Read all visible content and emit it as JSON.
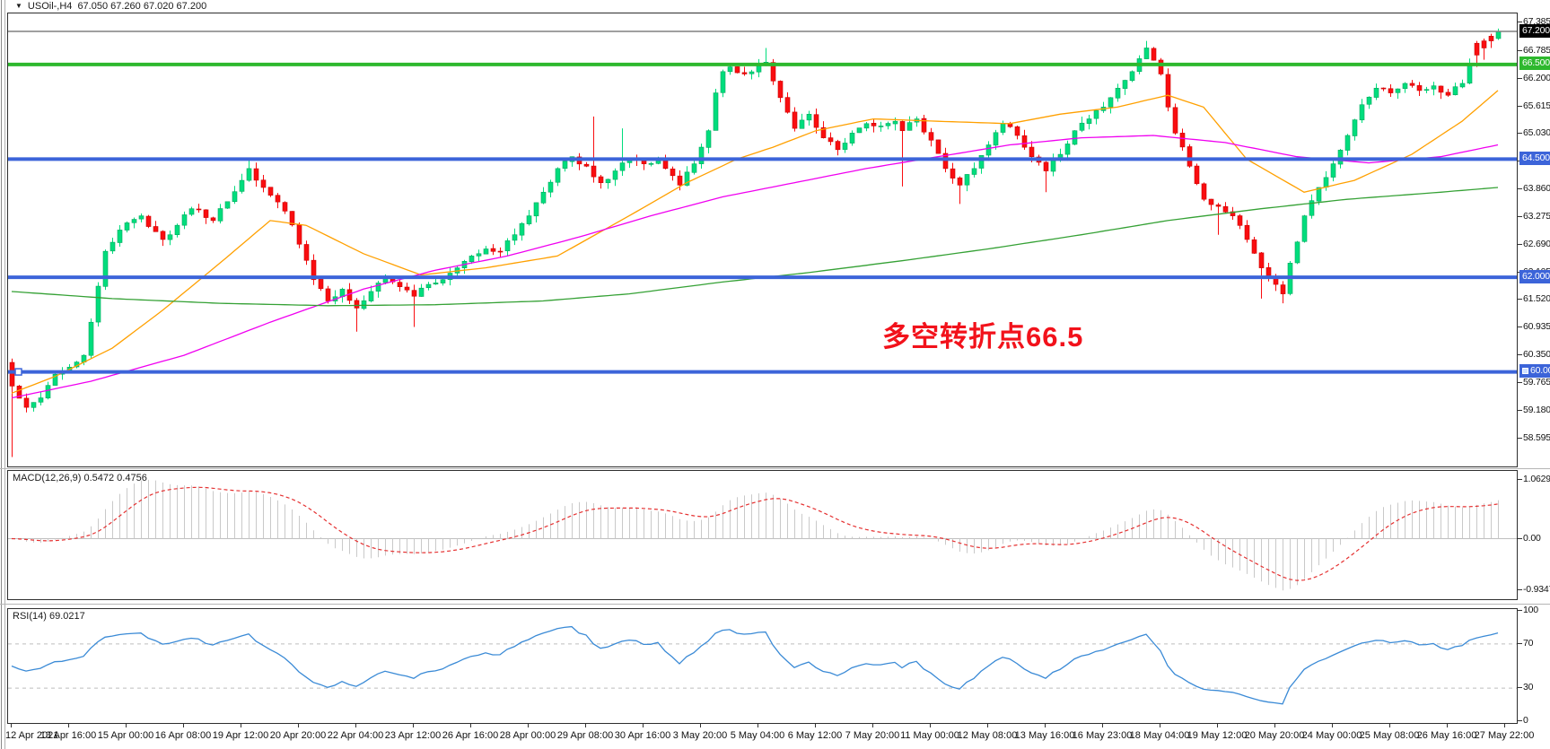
{
  "window": {
    "symbol_title": "USOil-,H4",
    "ohlc_title": "67.050 67.260 67.020 67.200",
    "dropdown_icon": "symbol-dropdown-icon"
  },
  "annotation": {
    "text": "多空转折点66.5",
    "color": "#f2121b"
  },
  "chart_data": {
    "type": "candlestick",
    "symbol": "USOil-",
    "timeframe": "H4",
    "title": "USOil-,H4 67.050 67.260 67.020 67.200",
    "last_ohlc": {
      "open": 67.05,
      "high": 67.26,
      "low": 67.02,
      "close": 67.2
    },
    "price_axis": {
      "min": 58.0,
      "max": 67.58,
      "ticks": [
        {
          "label": "67.385",
          "value": 67.385
        },
        {
          "label": "66.785",
          "value": 66.785
        },
        {
          "label": "66.200",
          "value": 66.2
        },
        {
          "label": "65.615",
          "value": 65.615
        },
        {
          "label": "65.030",
          "value": 65.03
        },
        {
          "label": "64.445",
          "value": 64.445
        },
        {
          "label": "63.860",
          "value": 63.86
        },
        {
          "label": "63.275",
          "value": 63.275
        },
        {
          "label": "62.690",
          "value": 62.69
        },
        {
          "label": "62.105",
          "value": 62.105
        },
        {
          "label": "61.520",
          "value": 61.52
        },
        {
          "label": "60.935",
          "value": 60.935
        },
        {
          "label": "60.350",
          "value": 60.35
        },
        {
          "label": "59.765",
          "value": 59.765
        },
        {
          "label": "59.180",
          "value": 59.18
        },
        {
          "label": "58.595",
          "value": 58.595
        }
      ]
    },
    "time_labels": [
      "12 Apr 2021",
      "13 Apr 16:00",
      "15 Apr 00:00",
      "16 Apr 08:00",
      "19 Apr 12:00",
      "20 Apr 20:00",
      "22 Apr 04:00",
      "23 Apr 12:00",
      "26 Apr 16:00",
      "28 Apr 00:00",
      "29 Apr 08:00",
      "30 Apr 16:00",
      "3 May 20:00",
      "5 May 04:00",
      "6 May 12:00",
      "7 May 20:00",
      "11 May 00:00",
      "12 May 08:00",
      "13 May 16:00",
      "16 May 23:00",
      "18 May 04:00",
      "19 May 12:00",
      "20 May 20:00",
      "24 May 00:00",
      "25 May 08:00",
      "26 May 16:00",
      "27 May 22:00"
    ],
    "horizontal_lines": [
      {
        "value": 66.5,
        "label": "66.500",
        "color": "#2eb82e",
        "width": 4
      },
      {
        "value": 64.5,
        "label": "64.500",
        "color": "#3c64d9",
        "width": 4
      },
      {
        "value": 62.0,
        "label": "62.000",
        "color": "#3c64d9",
        "width": 4
      },
      {
        "value": 60.0,
        "label": "60.000",
        "color": "#3c64d9",
        "width": 4,
        "handle": true
      }
    ],
    "current_price": {
      "value": 67.2,
      "label": "67.200",
      "line_color": "#808080",
      "badge_bg": "#000000"
    },
    "candles": {
      "count": 208,
      "up_color": "#00dd7d",
      "up_stroke": "#00a85c",
      "down_color": "#f90d10",
      "down_stroke": "#cc0000",
      "close_anchors": [
        [
          0,
          59.7
        ],
        [
          2,
          59.25
        ],
        [
          4,
          59.45
        ],
        [
          6,
          59.95
        ],
        [
          8,
          60.1
        ],
        [
          10,
          60.35
        ],
        [
          11,
          61.05
        ],
        [
          13,
          62.55
        ],
        [
          15,
          63.0
        ],
        [
          18,
          63.3
        ],
        [
          21,
          62.8
        ],
        [
          23,
          63.1
        ],
        [
          25,
          63.45
        ],
        [
          28,
          63.2
        ],
        [
          30,
          63.6
        ],
        [
          32,
          64.05
        ],
        [
          33,
          64.3
        ],
        [
          35,
          63.9
        ],
        [
          38,
          63.4
        ],
        [
          40,
          62.7
        ],
        [
          42,
          61.95
        ],
        [
          44,
          61.5
        ],
        [
          46,
          61.75
        ],
        [
          48,
          61.35
        ],
        [
          50,
          61.7
        ],
        [
          52,
          62.0
        ],
        [
          54,
          61.8
        ],
        [
          56,
          61.6
        ],
        [
          58,
          61.85
        ],
        [
          60,
          61.95
        ],
        [
          62,
          62.2
        ],
        [
          64,
          62.45
        ],
        [
          66,
          62.6
        ],
        [
          68,
          62.55
        ],
        [
          70,
          62.9
        ],
        [
          72,
          63.3
        ],
        [
          74,
          63.8
        ],
        [
          76,
          64.3
        ],
        [
          78,
          64.55
        ],
        [
          80,
          64.35
        ],
        [
          82,
          64.0
        ],
        [
          84,
          64.25
        ],
        [
          86,
          64.5
        ],
        [
          88,
          64.4
        ],
        [
          90,
          64.5
        ],
        [
          92,
          64.15
        ],
        [
          93,
          63.95
        ],
        [
          95,
          64.4
        ],
        [
          97,
          65.1
        ],
        [
          98,
          65.9
        ],
        [
          99,
          66.35
        ],
        [
          100,
          66.45
        ],
        [
          102,
          66.3
        ],
        [
          104,
          66.5
        ],
        [
          105,
          66.55
        ],
        [
          107,
          65.8
        ],
        [
          109,
          65.15
        ],
        [
          111,
          65.45
        ],
        [
          113,
          64.95
        ],
        [
          115,
          64.7
        ],
        [
          117,
          65.05
        ],
        [
          119,
          65.25
        ],
        [
          121,
          65.2
        ],
        [
          123,
          65.3
        ],
        [
          124,
          65.1
        ],
        [
          126,
          65.35
        ],
        [
          128,
          64.9
        ],
        [
          130,
          64.3
        ],
        [
          132,
          63.95
        ],
        [
          134,
          64.3
        ],
        [
          136,
          64.8
        ],
        [
          138,
          65.25
        ],
        [
          140,
          65.0
        ],
        [
          142,
          64.55
        ],
        [
          144,
          64.25
        ],
        [
          146,
          64.6
        ],
        [
          148,
          65.1
        ],
        [
          150,
          65.35
        ],
        [
          152,
          65.6
        ],
        [
          154,
          66.0
        ],
        [
          156,
          66.35
        ],
        [
          158,
          66.85
        ],
        [
          160,
          66.3
        ],
        [
          161,
          65.6
        ],
        [
          162,
          65.05
        ],
        [
          164,
          64.35
        ],
        [
          166,
          63.65
        ],
        [
          168,
          63.5
        ],
        [
          170,
          63.3
        ],
        [
          172,
          62.8
        ],
        [
          174,
          62.2
        ],
        [
          176,
          61.85
        ],
        [
          177,
          61.65
        ],
        [
          178,
          62.3
        ],
        [
          180,
          63.3
        ],
        [
          182,
          63.9
        ],
        [
          184,
          64.4
        ],
        [
          186,
          65.0
        ],
        [
          188,
          65.65
        ],
        [
          190,
          66.0
        ],
        [
          192,
          65.9
        ],
        [
          194,
          66.1
        ],
        [
          196,
          65.95
        ],
        [
          198,
          66.05
        ],
        [
          200,
          65.85
        ],
        [
          202,
          66.1
        ],
        [
          203,
          66.5
        ],
        [
          204,
          66.7
        ],
        [
          205,
          66.85
        ],
        [
          206,
          67.0
        ],
        [
          207,
          67.2
        ]
      ],
      "wick_overrides": [
        {
          "i": 0,
          "low": 58.2
        },
        {
          "i": 33,
          "high": 64.5
        },
        {
          "i": 48,
          "low": 60.85
        },
        {
          "i": 56,
          "low": 60.95
        },
        {
          "i": 81,
          "high": 65.4
        },
        {
          "i": 85,
          "high": 65.15
        },
        {
          "i": 105,
          "high": 66.85
        },
        {
          "i": 124,
          "low": 63.92
        },
        {
          "i": 132,
          "low": 63.55
        },
        {
          "i": 144,
          "low": 63.8
        },
        {
          "i": 158,
          "high": 67.0
        },
        {
          "i": 168,
          "low": 62.9
        },
        {
          "i": 174,
          "low": 61.55
        },
        {
          "i": 177,
          "low": 61.45
        }
      ],
      "candle_overrides": [
        {
          "i": 204,
          "o": 66.95,
          "h": 67.0,
          "l": 66.45,
          "c": 66.7
        },
        {
          "i": 205,
          "o": 67.0,
          "h": 67.05,
          "l": 66.6,
          "c": 66.85
        },
        {
          "i": 206,
          "o": 67.1,
          "h": 67.15,
          "l": 66.85,
          "c": 67.0
        },
        {
          "i": 207,
          "o": 67.05,
          "h": 67.26,
          "l": 67.02,
          "c": 67.2
        }
      ]
    },
    "moving_averages": [
      {
        "name": "fast-ma",
        "color": "#ffa000",
        "width": 1.3,
        "points": [
          [
            0,
            59.55
          ],
          [
            6,
            59.9
          ],
          [
            14,
            60.5
          ],
          [
            21,
            61.3
          ],
          [
            29,
            62.3
          ],
          [
            36,
            63.2
          ],
          [
            41,
            63.1
          ],
          [
            49,
            62.5
          ],
          [
            57,
            62.05
          ],
          [
            66,
            62.2
          ],
          [
            76,
            62.45
          ],
          [
            86,
            63.3
          ],
          [
            94,
            64.0
          ],
          [
            101,
            64.5
          ],
          [
            106,
            64.75
          ],
          [
            112,
            65.1
          ],
          [
            120,
            65.35
          ],
          [
            129,
            65.3
          ],
          [
            139,
            65.25
          ],
          [
            146,
            65.45
          ],
          [
            154,
            65.6
          ],
          [
            161,
            65.85
          ],
          [
            166,
            65.6
          ],
          [
            172,
            64.5
          ],
          [
            180,
            63.8
          ],
          [
            187,
            64.05
          ],
          [
            195,
            64.6
          ],
          [
            202,
            65.3
          ],
          [
            207,
            65.95
          ]
        ]
      },
      {
        "name": "medium-ma",
        "color": "#f000f0",
        "width": 1.3,
        "points": [
          [
            0,
            59.45
          ],
          [
            11,
            59.8
          ],
          [
            24,
            60.35
          ],
          [
            36,
            61.05
          ],
          [
            49,
            61.75
          ],
          [
            59,
            62.15
          ],
          [
            69,
            62.45
          ],
          [
            79,
            62.85
          ],
          [
            89,
            63.3
          ],
          [
            99,
            63.7
          ],
          [
            109,
            64.0
          ],
          [
            119,
            64.3
          ],
          [
            129,
            64.55
          ],
          [
            139,
            64.8
          ],
          [
            149,
            64.95
          ],
          [
            159,
            65.0
          ],
          [
            169,
            64.85
          ],
          [
            179,
            64.55
          ],
          [
            189,
            64.42
          ],
          [
            199,
            64.55
          ],
          [
            207,
            64.8
          ]
        ]
      },
      {
        "name": "slow-ma",
        "color": "#35a135",
        "width": 1.3,
        "points": [
          [
            0,
            61.7
          ],
          [
            14,
            61.55
          ],
          [
            29,
            61.45
          ],
          [
            44,
            61.4
          ],
          [
            59,
            61.42
          ],
          [
            74,
            61.5
          ],
          [
            86,
            61.65
          ],
          [
            99,
            61.9
          ],
          [
            111,
            62.1
          ],
          [
            124,
            62.35
          ],
          [
            136,
            62.6
          ],
          [
            149,
            62.9
          ],
          [
            161,
            63.2
          ],
          [
            174,
            63.45
          ],
          [
            186,
            63.65
          ],
          [
            199,
            63.8
          ],
          [
            207,
            63.9
          ]
        ]
      }
    ],
    "macd": {
      "label": "MACD(12,26,9) 0.5472 0.4756",
      "fast": 12,
      "slow": 26,
      "signal": 9,
      "last_macd": 0.5472,
      "last_signal": 0.4756,
      "hist_color": "#c9c9c9",
      "signal_color": "#e53030",
      "axis": {
        "min": -1.06,
        "max": 1.19,
        "ticks": [
          {
            "label": "1.0629",
            "value": 1.0629
          },
          {
            "label": "0.00",
            "value": 0
          },
          {
            "label": "-0.9347",
            "value": -0.9347
          }
        ]
      }
    },
    "rsi": {
      "label": "RSI(14) 69.0217",
      "period": 14,
      "last": 69.0217,
      "line_color": "#3a8ad6",
      "level_color": "#bdbdbd",
      "levels": [
        70,
        30
      ],
      "axis": {
        "min": 0,
        "max": 100,
        "ticks": [
          {
            "label": "100",
            "value": 100
          },
          {
            "label": "70",
            "value": 70
          },
          {
            "label": "30",
            "value": 30
          },
          {
            "label": "0",
            "value": 0
          }
        ]
      }
    }
  }
}
